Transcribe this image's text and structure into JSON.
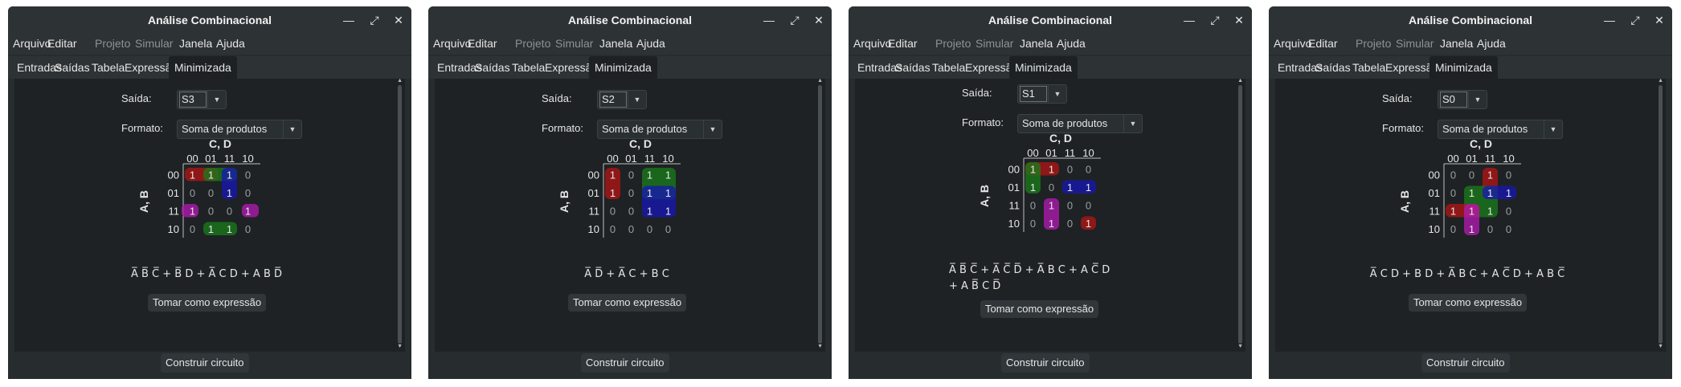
{
  "windows": [
    {
      "title": "Análise Combinacional",
      "menu": [
        {
          "label": "Arquivo",
          "enabled": true
        },
        {
          "label": "Editar",
          "enabled": true
        },
        {
          "label": "Projeto",
          "enabled": false
        },
        {
          "label": "Simular",
          "enabled": false
        },
        {
          "label": "Janela",
          "enabled": true
        },
        {
          "label": "Ajuda",
          "enabled": true
        }
      ],
      "tabs": [
        "Entradas",
        "Saídas",
        "Tabela",
        "Expressão",
        "Minimizada"
      ],
      "active_tab": "Minimizada",
      "output_label": "Saída:",
      "output_value": "S3",
      "format_label": "Formato:",
      "format_value": "Soma de produtos",
      "kmap": {
        "col_var": "C, D",
        "row_var": "A, B",
        "cols": [
          "00",
          "01",
          "11",
          "10"
        ],
        "rows": [
          "00",
          "01",
          "11",
          "10"
        ],
        "cells": [
          [
            "1",
            "1",
            "1",
            "0"
          ],
          [
            "0",
            "0",
            "1",
            "0"
          ],
          [
            "1",
            "0",
            "0",
            "1"
          ],
          [
            "0",
            "1",
            "1",
            "0"
          ]
        ],
        "groups": [
          {
            "color": "#b01515",
            "r0": 0,
            "r1": 0,
            "c0": 0,
            "c1": 1
          },
          {
            "color": "#1a7a1a",
            "r0": 0,
            "r1": 0,
            "c0": 1,
            "c1": 2
          },
          {
            "color": "#1717b0",
            "r0": 0,
            "r1": 1,
            "c0": 2,
            "c1": 2
          },
          {
            "color": "#b01ab0",
            "r0": 2,
            "r1": 2,
            "c0": 0,
            "c1": 0,
            "wrap": "left"
          },
          {
            "color": "#b01ab0",
            "r0": 2,
            "r1": 2,
            "c0": 3,
            "c1": 3,
            "wrap": "right"
          },
          {
            "color": "#1a7a1a",
            "r0": 3,
            "r1": 3,
            "c0": 1,
            "c1": 2
          }
        ]
      },
      "expression_lines": [
        "A̅ B̅ C̅ + B̅ D + A̅ C D + A B D̅"
      ],
      "take_expression_button": "Tomar como expressão",
      "build_circuit_button": "Construir circuito"
    },
    {
      "title": "Análise Combinacional",
      "menu": [
        {
          "label": "Arquivo",
          "enabled": true
        },
        {
          "label": "Editar",
          "enabled": true
        },
        {
          "label": "Projeto",
          "enabled": false
        },
        {
          "label": "Simular",
          "enabled": false
        },
        {
          "label": "Janela",
          "enabled": true
        },
        {
          "label": "Ajuda",
          "enabled": true
        }
      ],
      "tabs": [
        "Entradas",
        "Saídas",
        "Tabela",
        "Expressão",
        "Minimizada"
      ],
      "active_tab": "Minimizada",
      "output_label": "Saída:",
      "output_value": "S2",
      "format_label": "Formato:",
      "format_value": "Soma de produtos",
      "kmap": {
        "col_var": "C, D",
        "row_var": "A, B",
        "cols": [
          "00",
          "01",
          "11",
          "10"
        ],
        "rows": [
          "00",
          "01",
          "11",
          "10"
        ],
        "cells": [
          [
            "1",
            "0",
            "1",
            "1"
          ],
          [
            "1",
            "0",
            "1",
            "1"
          ],
          [
            "0",
            "0",
            "1",
            "1"
          ],
          [
            "0",
            "0",
            "0",
            "0"
          ]
        ],
        "groups": [
          {
            "color": "#b01515",
            "r0": 0,
            "r1": 1,
            "c0": 0,
            "c1": 0
          },
          {
            "color": "#1a7a1a",
            "r0": 0,
            "r1": 1,
            "c0": 2,
            "c1": 3
          },
          {
            "color": "#1717b0",
            "r0": 1,
            "r1": 2,
            "c0": 2,
            "c1": 3
          }
        ]
      },
      "expression_lines": [
        "A̅ D̅ + A̅ C + B C"
      ],
      "take_expression_button": "Tomar como expressão",
      "build_circuit_button": "Construir circuito"
    },
    {
      "title": "Análise Combinacional",
      "menu": [
        {
          "label": "Arquivo",
          "enabled": true
        },
        {
          "label": "Editar",
          "enabled": true
        },
        {
          "label": "Projeto",
          "enabled": false
        },
        {
          "label": "Simular",
          "enabled": false
        },
        {
          "label": "Janela",
          "enabled": true
        },
        {
          "label": "Ajuda",
          "enabled": true
        }
      ],
      "tabs": [
        "Entradas",
        "Saídas",
        "Tabela",
        "Expressão",
        "Minimizada"
      ],
      "active_tab": "Minimizada",
      "output_label": "Saída:",
      "output_value": "S1",
      "format_label": "Formato:",
      "format_value": "Soma de produtos",
      "kmap": {
        "col_var": "C, D",
        "row_var": "A, B",
        "cols": [
          "00",
          "01",
          "11",
          "10"
        ],
        "rows": [
          "00",
          "01",
          "11",
          "10"
        ],
        "cells": [
          [
            "1",
            "1",
            "0",
            "0"
          ],
          [
            "1",
            "0",
            "1",
            "1"
          ],
          [
            "0",
            "1",
            "0",
            "0"
          ],
          [
            "0",
            "1",
            "0",
            "1"
          ]
        ],
        "groups": [
          {
            "color": "#b01515",
            "r0": 0,
            "r1": 0,
            "c0": 0,
            "c1": 1
          },
          {
            "color": "#1a7a1a",
            "r0": 0,
            "r1": 1,
            "c0": 0,
            "c1": 0
          },
          {
            "color": "#1717b0",
            "r0": 1,
            "r1": 1,
            "c0": 2,
            "c1": 3
          },
          {
            "color": "#b01ab0",
            "r0": 2,
            "r1": 3,
            "c0": 1,
            "c1": 1
          },
          {
            "color": "#b01515",
            "r0": 3,
            "r1": 3,
            "c0": 3,
            "c1": 3
          }
        ]
      },
      "expression_lines": [
        "A̅ B̅ C̅ + A̅ C̅ D̅ + A̅ B C + A C̅ D",
        "+ A B̅ C D̅"
      ],
      "take_expression_button": "Tomar como expressão",
      "build_circuit_button": "Construir circuito"
    },
    {
      "title": "Análise Combinacional",
      "menu": [
        {
          "label": "Arquivo",
          "enabled": true
        },
        {
          "label": "Editar",
          "enabled": true
        },
        {
          "label": "Projeto",
          "enabled": false
        },
        {
          "label": "Simular",
          "enabled": false
        },
        {
          "label": "Janela",
          "enabled": true
        },
        {
          "label": "Ajuda",
          "enabled": true
        }
      ],
      "tabs": [
        "Entradas",
        "Saídas",
        "Tabela",
        "Expressão",
        "Minimizada"
      ],
      "active_tab": "Minimizada",
      "output_label": "Saída:",
      "output_value": "S0",
      "format_label": "Formato:",
      "format_value": "Soma de produtos",
      "kmap": {
        "col_var": "C, D",
        "row_var": "A, B",
        "cols": [
          "00",
          "01",
          "11",
          "10"
        ],
        "rows": [
          "00",
          "01",
          "11",
          "10"
        ],
        "cells": [
          [
            "0",
            "0",
            "1",
            "0"
          ],
          [
            "0",
            "1",
            "1",
            "1"
          ],
          [
            "1",
            "1",
            "1",
            "0"
          ],
          [
            "0",
            "1",
            "0",
            "0"
          ]
        ],
        "groups": [
          {
            "color": "#b01515",
            "r0": 0,
            "r1": 1,
            "c0": 2,
            "c1": 2
          },
          {
            "color": "#1a7a1a",
            "r0": 1,
            "r1": 2,
            "c0": 1,
            "c1": 2
          },
          {
            "color": "#1717b0",
            "r0": 1,
            "r1": 1,
            "c0": 2,
            "c1": 3
          },
          {
            "color": "#b01515",
            "r0": 2,
            "r1": 2,
            "c0": 0,
            "c1": 1
          },
          {
            "color": "#b01ab0",
            "r0": 2,
            "r1": 3,
            "c0": 1,
            "c1": 1
          }
        ]
      },
      "expression_lines": [
        "A̅ C D + B D + A̅ B C + A C̅ D + A B C̅"
      ],
      "take_expression_button": "Tomar como expressão",
      "build_circuit_button": "Construir circuito"
    }
  ]
}
